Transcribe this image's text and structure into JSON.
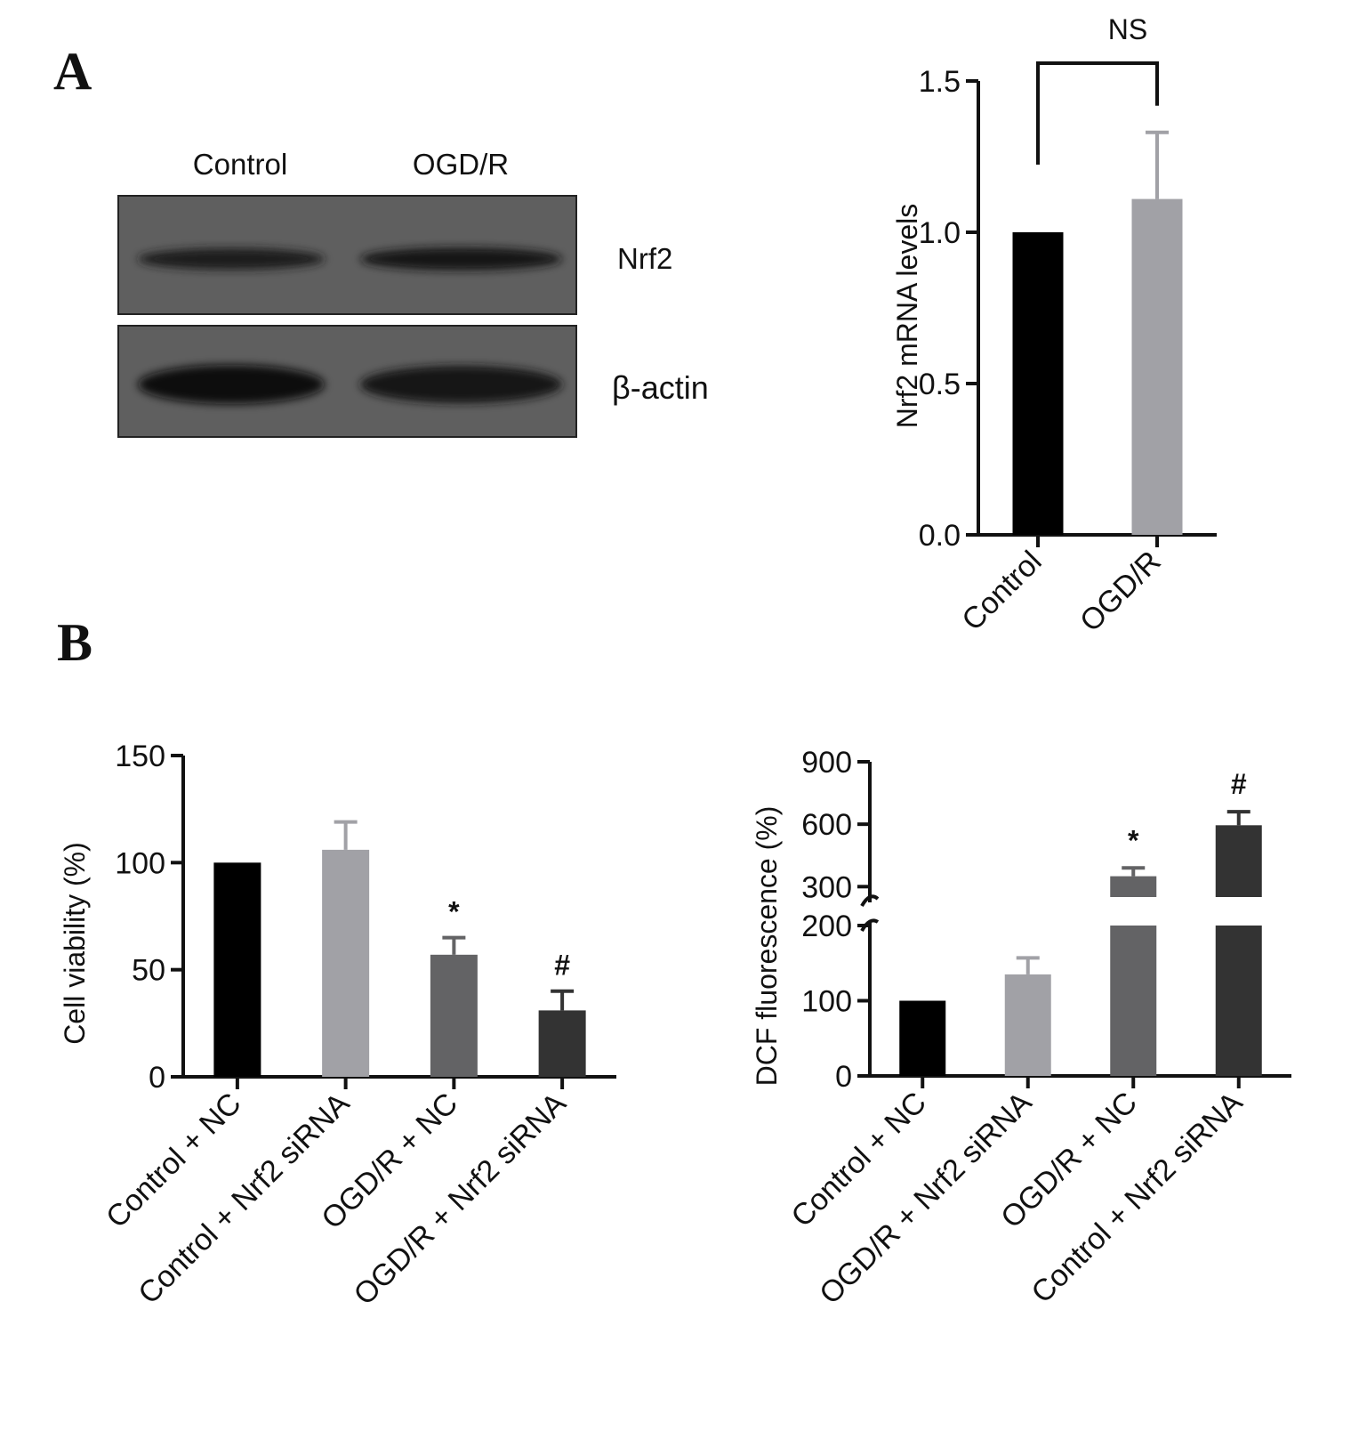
{
  "panels": {
    "a_label": "A",
    "b_label": "B"
  },
  "western_blot": {
    "lanes": [
      "Control",
      "OGD/R"
    ],
    "rows": [
      {
        "label": "Nrf2",
        "band_intensity": [
          0.75,
          0.95
        ]
      },
      {
        "label": "β-actin",
        "band_intensity": [
          1.0,
          0.85
        ]
      }
    ]
  },
  "chart_data": [
    {
      "type": "bar",
      "categories": [
        "Control",
        "OGD/R"
      ],
      "values": [
        1.0,
        1.11
      ],
      "errors": [
        0,
        0.22
      ],
      "colors": [
        "#000000",
        "#a1a1a6"
      ],
      "ylabel": "Nrf2 mRNA levels",
      "xlabel": "",
      "ylim": [
        0,
        1.5
      ],
      "yticks": [
        "0.0",
        "0.5",
        "1.0",
        "1.5"
      ],
      "bracket_label": "NS",
      "bracket_between": [
        "Control",
        "OGD/R"
      ]
    },
    {
      "type": "bar",
      "categories": [
        "Control + NC",
        "Control + Nrf2 siRNA",
        "OGD/R + NC",
        "OGD/R + Nrf2 siRNA"
      ],
      "values": [
        100,
        106,
        57,
        31
      ],
      "errors": [
        0,
        13,
        8,
        9
      ],
      "colors": [
        "#000000",
        "#a1a1a6",
        "#636365",
        "#333333"
      ],
      "annotations": [
        "",
        "",
        "*",
        "#"
      ],
      "ylabel": "Cell viability (%)",
      "xlabel": "",
      "ylim": [
        0,
        150
      ],
      "yticks": [
        "0",
        "50",
        "100",
        "150"
      ]
    },
    {
      "type": "bar",
      "categories": [
        "Control + NC",
        "OGD/R + Nrf2 siRNA",
        "OGD/R + NC",
        "Control + Nrf2 siRNA"
      ],
      "values": [
        100,
        135,
        350,
        595
      ],
      "errors": [
        0,
        22,
        40,
        65
      ],
      "colors": [
        "#000000",
        "#a1a1a6",
        "#636365",
        "#333333"
      ],
      "annotations": [
        "",
        "",
        "*",
        "#"
      ],
      "ylabel": "DCF fluorescence (%)",
      "xlabel": "",
      "axis_break": [
        200,
        250
      ],
      "lower_range": [
        0,
        200
      ],
      "upper_range": [
        250,
        900
      ],
      "yticks": [
        "0",
        "100",
        "200",
        "300",
        "600",
        "900"
      ]
    }
  ]
}
